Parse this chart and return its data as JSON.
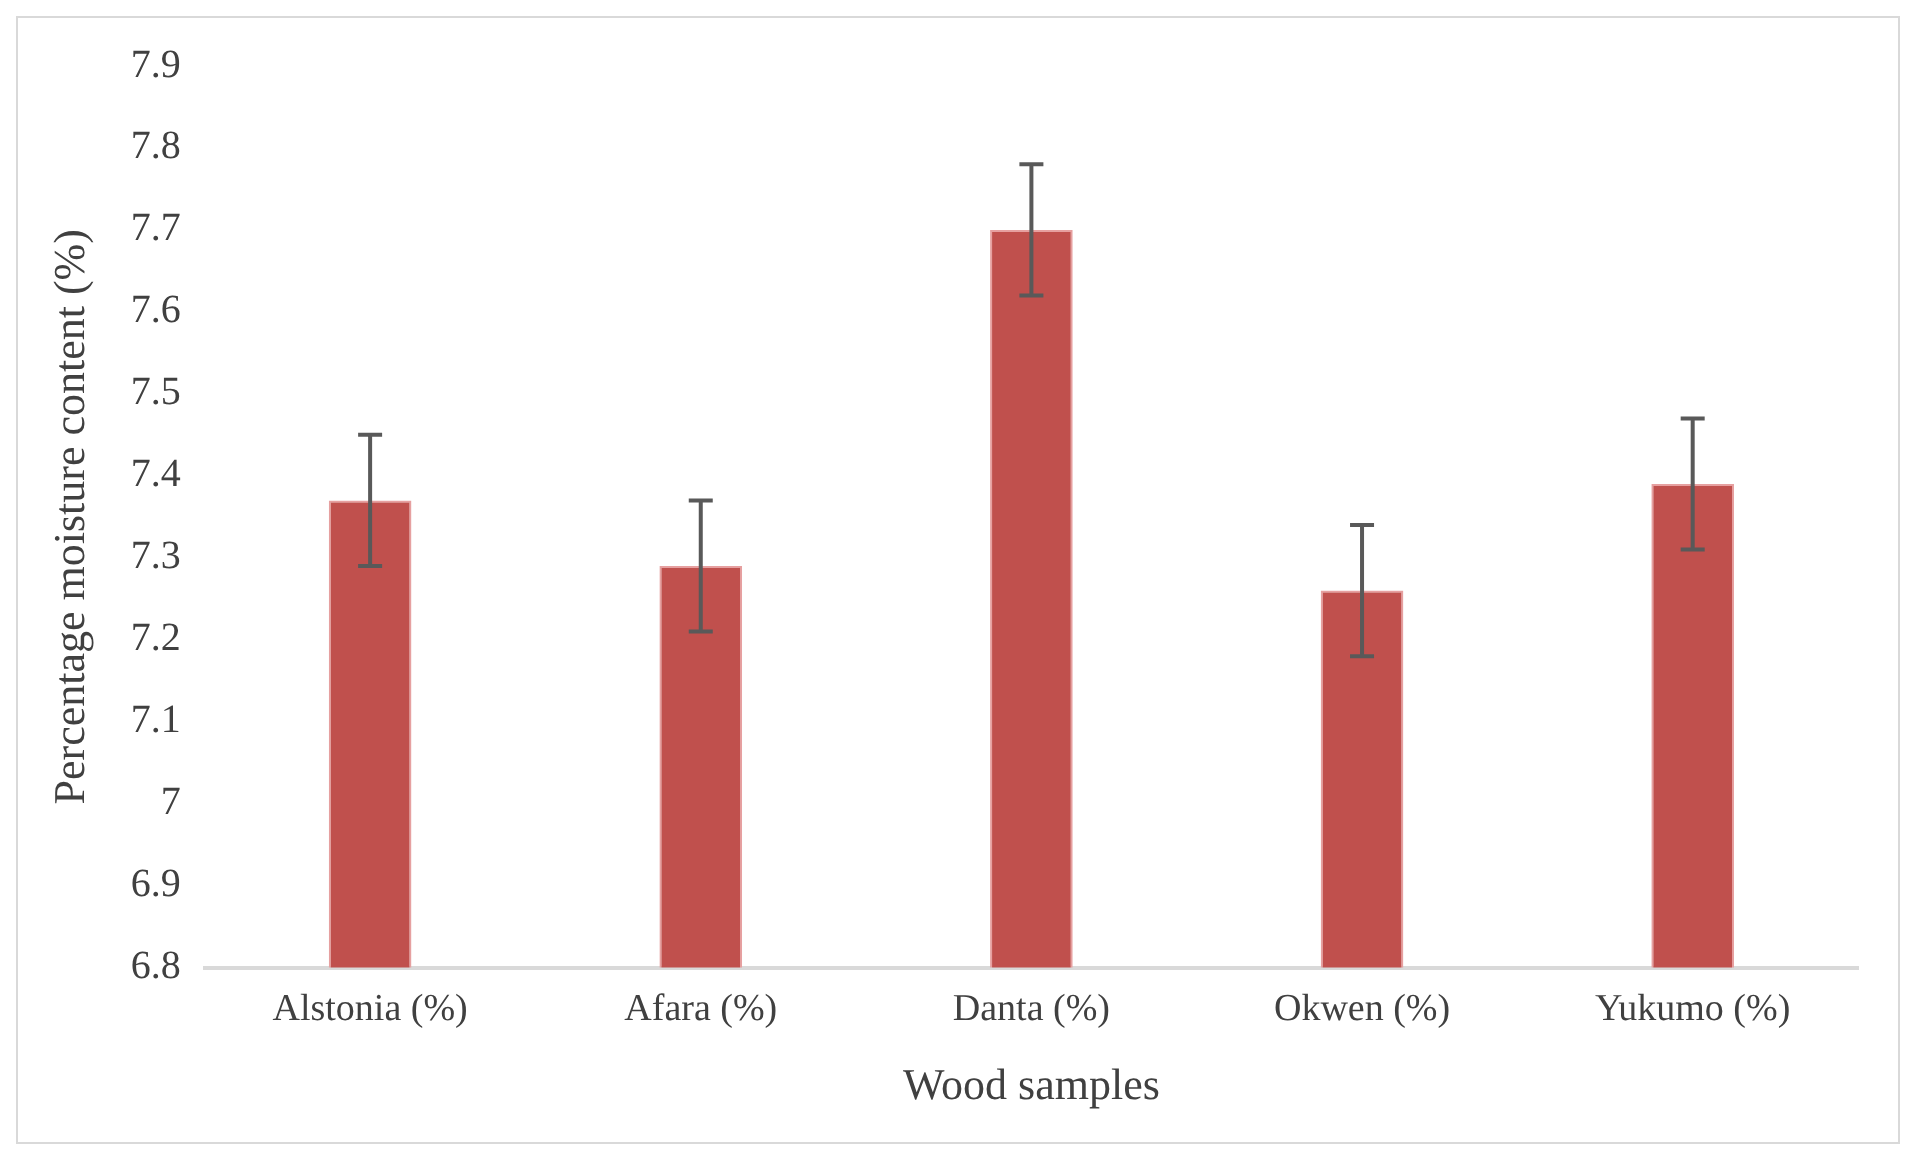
{
  "chart_data": {
    "type": "bar",
    "xlabel": "Wood samples",
    "ylabel": "Percentage moisture content (%)",
    "categories": [
      "Alstonia (%)",
      "Afara (%)",
      "Danta (%)",
      "Okwen (%)",
      "Yukumo (%)"
    ],
    "values": [
      7.37,
      7.29,
      7.7,
      7.26,
      7.39
    ],
    "errors": [
      0.08,
      0.08,
      0.08,
      0.08,
      0.08
    ],
    "color": "#c0504d",
    "ylim": [
      6.8,
      7.9
    ],
    "yticks": [
      6.8,
      6.9,
      7,
      7.1,
      7.2,
      7.3,
      7.4,
      7.5,
      7.6,
      7.7,
      7.8,
      7.9
    ],
    "grid": false,
    "legend": false
  }
}
